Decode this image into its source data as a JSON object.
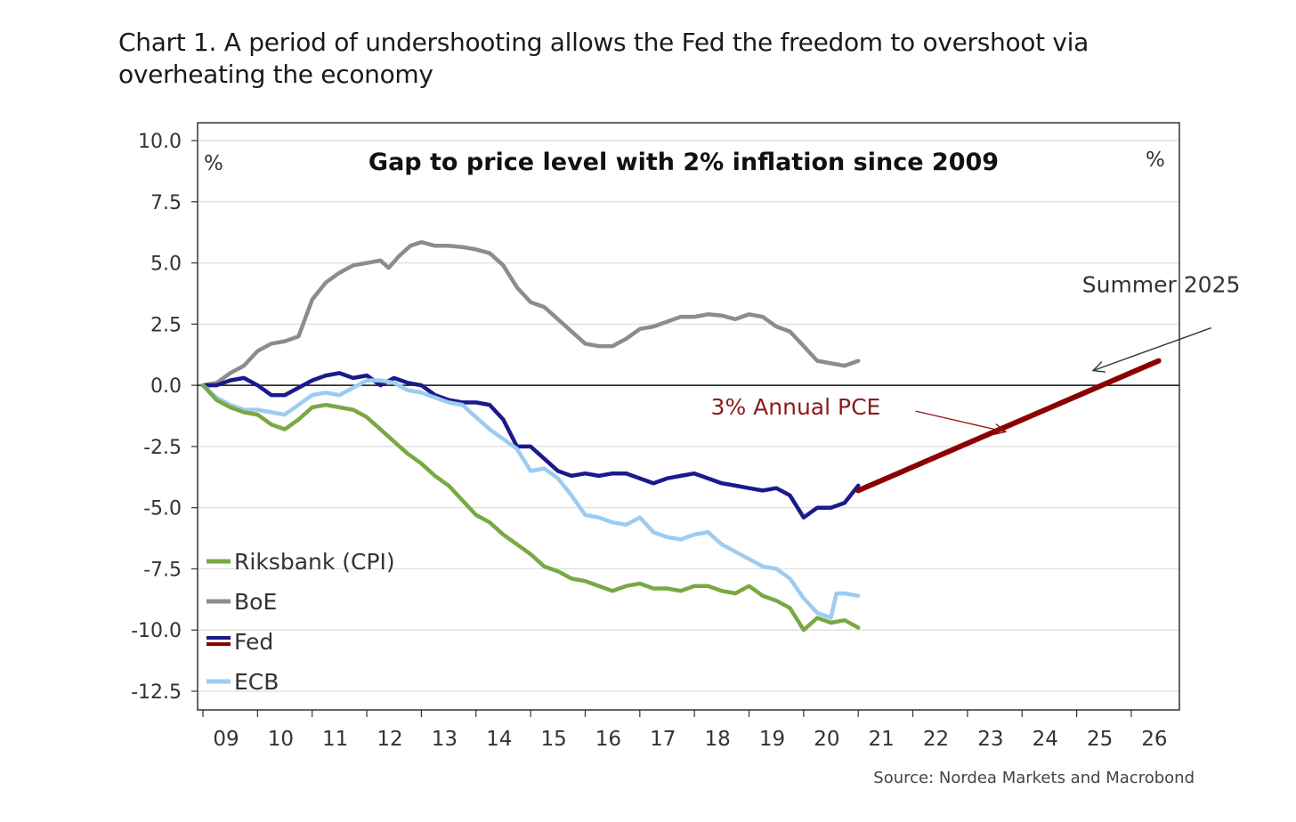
{
  "heading": "Chart 1. A period of undershooting allows the Fed the freedom to overshoot via overheating the economy",
  "chart_data": {
    "type": "line",
    "title": "Gap to price level with 2% inflation since 2009",
    "unit_left": "%",
    "unit_right": "%",
    "source": "Source: Nordea Markets and Macrobond",
    "xlim": [
      2009,
      2026.5
    ],
    "ylim": [
      -12.5,
      10.0
    ],
    "y_ticks": [
      10.0,
      7.5,
      5.0,
      2.5,
      0.0,
      -2.5,
      -5.0,
      -7.5,
      -10.0,
      -12.5
    ],
    "y_tick_labels": [
      "10.0",
      "7.5",
      "5.0",
      "2.5",
      "0.0",
      "-2.5",
      "-5.0",
      "-7.5",
      "-10.0",
      "-12.5"
    ],
    "x_tick_labels": [
      "09",
      "10",
      "11",
      "12",
      "13",
      "14",
      "15",
      "16",
      "17",
      "18",
      "19",
      "20",
      "21",
      "22",
      "23",
      "24",
      "25",
      "26"
    ],
    "grid": "horizontal",
    "legend_position": "bottom-left",
    "legend": [
      "Riksbank (CPI)",
      "BoE",
      "Fed",
      "ECB"
    ],
    "series": [
      {
        "name": "BoE",
        "color": "#8c8c8c",
        "points": [
          [
            2009.0,
            0.0
          ],
          [
            2009.25,
            0.1
          ],
          [
            2009.5,
            0.5
          ],
          [
            2009.75,
            0.8
          ],
          [
            2010.0,
            1.4
          ],
          [
            2010.25,
            1.7
          ],
          [
            2010.5,
            1.8
          ],
          [
            2010.75,
            2.0
          ],
          [
            2011.0,
            3.5
          ],
          [
            2011.25,
            4.2
          ],
          [
            2011.5,
            4.6
          ],
          [
            2011.75,
            4.9
          ],
          [
            2012.0,
            5.0
          ],
          [
            2012.25,
            5.1
          ],
          [
            2012.4,
            4.8
          ],
          [
            2012.6,
            5.3
          ],
          [
            2012.8,
            5.7
          ],
          [
            2013.0,
            5.85
          ],
          [
            2013.25,
            5.7
          ],
          [
            2013.5,
            5.7
          ],
          [
            2013.75,
            5.65
          ],
          [
            2014.0,
            5.55
          ],
          [
            2014.25,
            5.4
          ],
          [
            2014.5,
            4.9
          ],
          [
            2014.75,
            4.0
          ],
          [
            2015.0,
            3.4
          ],
          [
            2015.25,
            3.2
          ],
          [
            2015.5,
            2.7
          ],
          [
            2015.75,
            2.2
          ],
          [
            2016.0,
            1.7
          ],
          [
            2016.25,
            1.6
          ],
          [
            2016.5,
            1.6
          ],
          [
            2016.75,
            1.9
          ],
          [
            2017.0,
            2.3
          ],
          [
            2017.25,
            2.4
          ],
          [
            2017.5,
            2.6
          ],
          [
            2017.75,
            2.8
          ],
          [
            2018.0,
            2.8
          ],
          [
            2018.25,
            2.9
          ],
          [
            2018.5,
            2.85
          ],
          [
            2018.75,
            2.7
          ],
          [
            2019.0,
            2.9
          ],
          [
            2019.25,
            2.8
          ],
          [
            2019.5,
            2.4
          ],
          [
            2019.75,
            2.2
          ],
          [
            2020.0,
            1.6
          ],
          [
            2020.25,
            1.0
          ],
          [
            2020.5,
            0.9
          ],
          [
            2020.75,
            0.8
          ],
          [
            2021.0,
            1.0
          ]
        ]
      },
      {
        "name": "Fed",
        "color": "#1a1a8c",
        "points": [
          [
            2009.0,
            0.0
          ],
          [
            2009.25,
            0.0
          ],
          [
            2009.5,
            0.2
          ],
          [
            2009.75,
            0.3
          ],
          [
            2010.0,
            0.0
          ],
          [
            2010.25,
            -0.4
          ],
          [
            2010.5,
            -0.4
          ],
          [
            2010.75,
            -0.1
          ],
          [
            2011.0,
            0.2
          ],
          [
            2011.25,
            0.4
          ],
          [
            2011.5,
            0.5
          ],
          [
            2011.75,
            0.3
          ],
          [
            2012.0,
            0.4
          ],
          [
            2012.25,
            0.0
          ],
          [
            2012.5,
            0.3
          ],
          [
            2012.75,
            0.1
          ],
          [
            2013.0,
            0.0
          ],
          [
            2013.25,
            -0.4
          ],
          [
            2013.5,
            -0.6
          ],
          [
            2013.75,
            -0.7
          ],
          [
            2014.0,
            -0.7
          ],
          [
            2014.25,
            -0.8
          ],
          [
            2014.5,
            -1.4
          ],
          [
            2014.75,
            -2.5
          ],
          [
            2015.0,
            -2.5
          ],
          [
            2015.25,
            -3.0
          ],
          [
            2015.5,
            -3.5
          ],
          [
            2015.75,
            -3.7
          ],
          [
            2016.0,
            -3.6
          ],
          [
            2016.25,
            -3.7
          ],
          [
            2016.5,
            -3.6
          ],
          [
            2016.75,
            -3.6
          ],
          [
            2017.0,
            -3.8
          ],
          [
            2017.25,
            -4.0
          ],
          [
            2017.5,
            -3.8
          ],
          [
            2017.75,
            -3.7
          ],
          [
            2018.0,
            -3.6
          ],
          [
            2018.25,
            -3.8
          ],
          [
            2018.5,
            -4.0
          ],
          [
            2018.75,
            -4.1
          ],
          [
            2019.0,
            -4.2
          ],
          [
            2019.25,
            -4.3
          ],
          [
            2019.5,
            -4.2
          ],
          [
            2019.75,
            -4.5
          ],
          [
            2020.0,
            -5.4
          ],
          [
            2020.25,
            -5.0
          ],
          [
            2020.5,
            -5.0
          ],
          [
            2020.75,
            -4.8
          ],
          [
            2021.0,
            -4.1
          ]
        ]
      },
      {
        "name": "ECB",
        "color": "#9ecbf0",
        "points": [
          [
            2009.0,
            0.0
          ],
          [
            2009.25,
            -0.5
          ],
          [
            2009.5,
            -0.8
          ],
          [
            2009.75,
            -1.0
          ],
          [
            2010.0,
            -1.0
          ],
          [
            2010.25,
            -1.1
          ],
          [
            2010.5,
            -1.2
          ],
          [
            2010.75,
            -0.8
          ],
          [
            2011.0,
            -0.4
          ],
          [
            2011.25,
            -0.3
          ],
          [
            2011.5,
            -0.4
          ],
          [
            2011.75,
            -0.1
          ],
          [
            2012.0,
            0.2
          ],
          [
            2012.25,
            0.2
          ],
          [
            2012.5,
            0.1
          ],
          [
            2012.75,
            -0.2
          ],
          [
            2013.0,
            -0.3
          ],
          [
            2013.25,
            -0.5
          ],
          [
            2013.5,
            -0.7
          ],
          [
            2013.75,
            -0.8
          ],
          [
            2014.0,
            -1.3
          ],
          [
            2014.25,
            -1.8
          ],
          [
            2014.5,
            -2.2
          ],
          [
            2014.75,
            -2.6
          ],
          [
            2015.0,
            -3.5
          ],
          [
            2015.25,
            -3.4
          ],
          [
            2015.5,
            -3.8
          ],
          [
            2015.75,
            -4.5
          ],
          [
            2016.0,
            -5.3
          ],
          [
            2016.25,
            -5.4
          ],
          [
            2016.5,
            -5.6
          ],
          [
            2016.75,
            -5.7
          ],
          [
            2017.0,
            -5.4
          ],
          [
            2017.25,
            -6.0
          ],
          [
            2017.5,
            -6.2
          ],
          [
            2017.75,
            -6.3
          ],
          [
            2018.0,
            -6.1
          ],
          [
            2018.25,
            -6.0
          ],
          [
            2018.5,
            -6.5
          ],
          [
            2018.75,
            -6.8
          ],
          [
            2019.0,
            -7.1
          ],
          [
            2019.25,
            -7.4
          ],
          [
            2019.5,
            -7.5
          ],
          [
            2019.75,
            -7.9
          ],
          [
            2020.0,
            -8.7
          ],
          [
            2020.25,
            -9.3
          ],
          [
            2020.5,
            -9.5
          ],
          [
            2020.6,
            -8.5
          ],
          [
            2020.75,
            -8.5
          ],
          [
            2021.0,
            -8.6
          ]
        ]
      },
      {
        "name": "Riksbank (CPI)",
        "color": "#7aa843",
        "points": [
          [
            2009.0,
            0.0
          ],
          [
            2009.25,
            -0.6
          ],
          [
            2009.5,
            -0.9
          ],
          [
            2009.75,
            -1.1
          ],
          [
            2010.0,
            -1.2
          ],
          [
            2010.25,
            -1.6
          ],
          [
            2010.5,
            -1.8
          ],
          [
            2010.75,
            -1.4
          ],
          [
            2011.0,
            -0.9
          ],
          [
            2011.25,
            -0.8
          ],
          [
            2011.5,
            -0.9
          ],
          [
            2011.75,
            -1.0
          ],
          [
            2012.0,
            -1.3
          ],
          [
            2012.25,
            -1.8
          ],
          [
            2012.5,
            -2.3
          ],
          [
            2012.75,
            -2.8
          ],
          [
            2013.0,
            -3.2
          ],
          [
            2013.25,
            -3.7
          ],
          [
            2013.5,
            -4.1
          ],
          [
            2013.75,
            -4.7
          ],
          [
            2014.0,
            -5.3
          ],
          [
            2014.25,
            -5.6
          ],
          [
            2014.5,
            -6.1
          ],
          [
            2014.75,
            -6.5
          ],
          [
            2015.0,
            -6.9
          ],
          [
            2015.25,
            -7.4
          ],
          [
            2015.5,
            -7.6
          ],
          [
            2015.75,
            -7.9
          ],
          [
            2016.0,
            -8.0
          ],
          [
            2016.25,
            -8.2
          ],
          [
            2016.5,
            -8.4
          ],
          [
            2016.75,
            -8.2
          ],
          [
            2017.0,
            -8.1
          ],
          [
            2017.25,
            -8.3
          ],
          [
            2017.5,
            -8.3
          ],
          [
            2017.75,
            -8.4
          ],
          [
            2018.0,
            -8.2
          ],
          [
            2018.25,
            -8.2
          ],
          [
            2018.5,
            -8.4
          ],
          [
            2018.75,
            -8.5
          ],
          [
            2019.0,
            -8.2
          ],
          [
            2019.25,
            -8.6
          ],
          [
            2019.5,
            -8.8
          ],
          [
            2019.75,
            -9.1
          ],
          [
            2020.0,
            -10.0
          ],
          [
            2020.25,
            -9.5
          ],
          [
            2020.5,
            -9.7
          ],
          [
            2020.75,
            -9.6
          ],
          [
            2021.0,
            -9.9
          ]
        ]
      },
      {
        "name": "3% Annual PCE",
        "color": "#8b0000",
        "points": [
          [
            2021.0,
            -4.3
          ],
          [
            2026.5,
            1.0
          ]
        ]
      }
    ],
    "annotations": [
      {
        "text": "Summer 2025",
        "color": "#333333",
        "x": 2025.1,
        "y": 3.8,
        "arrow_to": [
          2025.3,
          0.6
        ]
      },
      {
        "text": "3% Annual PCE",
        "color": "#8b1a1a",
        "x": 2018.3,
        "y": -1.2,
        "arrow_to": [
          2023.7,
          -1.9
        ]
      }
    ]
  }
}
